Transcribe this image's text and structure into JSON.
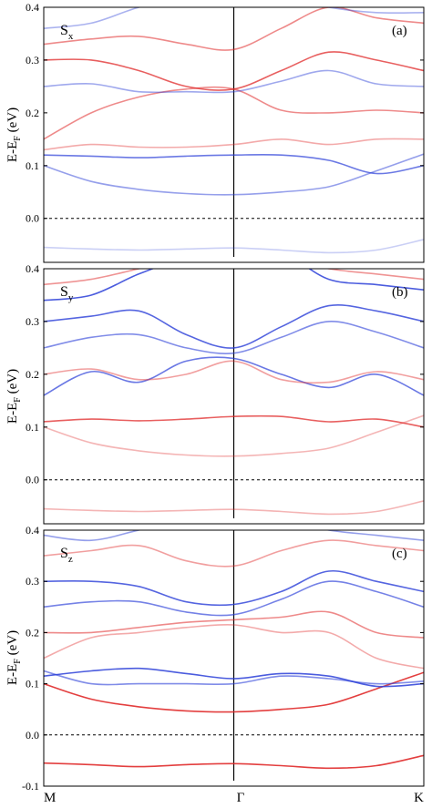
{
  "figure": {
    "ylabel_main": "E-E",
    "ylabel_sub": "F",
    "ylabel_unit": " (eV)",
    "x_ticks": [
      "M",
      "Γ",
      "K"
    ]
  },
  "colors": {
    "up": "#2b3fd8",
    "down": "#e02a2a",
    "axis": "#000000"
  },
  "chart_data": [
    {
      "type": "line",
      "panel_label": "(a)",
      "spin_main": "S",
      "spin_sub": "x",
      "xlabel": "",
      "ylabel": "E-EF (eV)",
      "ylim": [
        -0.0833,
        0.4
      ],
      "y_ticks": [
        "0.0",
        "0.1",
        "0.2",
        "0.3",
        "0.4"
      ],
      "reference_line": 0.0,
      "x": [
        0,
        0.25,
        0.5,
        0.75,
        1.0,
        1.25,
        1.5,
        1.75,
        2.0
      ],
      "series": [
        {
          "values": [
            -0.055,
            -0.058,
            -0.06,
            -0.058,
            -0.056,
            -0.06,
            -0.065,
            -0.06,
            -0.04
          ],
          "color": "#2b3fd8",
          "opacity": 0.25
        },
        {
          "values": [
            0.1,
            0.07,
            0.055,
            0.047,
            0.045,
            0.05,
            0.06,
            0.09,
            0.122
          ],
          "color": "#2b3fd8",
          "opacity": 0.5
        },
        {
          "values": [
            0.12,
            0.118,
            0.115,
            0.118,
            0.12,
            0.12,
            0.11,
            0.085,
            0.1
          ],
          "color": "#2b3fd8",
          "opacity": 0.7
        },
        {
          "values": [
            0.13,
            0.14,
            0.135,
            0.135,
            0.14,
            0.15,
            0.14,
            0.15,
            0.15
          ],
          "color": "#e02a2a",
          "opacity": 0.4
        },
        {
          "values": [
            0.15,
            0.2,
            0.23,
            0.245,
            0.245,
            0.205,
            0.2,
            0.205,
            0.2
          ],
          "color": "#e02a2a",
          "opacity": 0.55
        },
        {
          "values": [
            0.25,
            0.255,
            0.24,
            0.24,
            0.24,
            0.26,
            0.28,
            0.255,
            0.25
          ],
          "color": "#2b3fd8",
          "opacity": 0.45
        },
        {
          "values": [
            0.3,
            0.3,
            0.28,
            0.25,
            0.245,
            0.28,
            0.315,
            0.3,
            0.28
          ],
          "color": "#e02a2a",
          "opacity": 0.75
        },
        {
          "values": [
            0.33,
            0.34,
            0.345,
            0.33,
            0.32,
            0.36,
            0.4,
            0.38,
            0.37
          ],
          "color": "#e02a2a",
          "opacity": 0.55
        },
        {
          "values": [
            0.36,
            0.37,
            0.4,
            0.42,
            0.43,
            0.42,
            0.4,
            0.39,
            0.39
          ],
          "color": "#2b3fd8",
          "opacity": 0.4
        }
      ]
    },
    {
      "type": "line",
      "panel_label": "(b)",
      "spin_main": "S",
      "spin_sub": "y",
      "xlabel": "",
      "ylabel": "E-EF (eV)",
      "ylim": [
        -0.0833,
        0.4
      ],
      "y_ticks": [
        "0.0",
        "0.1",
        "0.2",
        "0.3",
        "0.4"
      ],
      "reference_line": 0.0,
      "x": [
        0,
        0.25,
        0.5,
        0.75,
        1.0,
        1.25,
        1.5,
        1.75,
        2.0
      ],
      "series": [
        {
          "values": [
            -0.055,
            -0.058,
            -0.06,
            -0.058,
            -0.056,
            -0.06,
            -0.065,
            -0.06,
            -0.04
          ],
          "color": "#e02a2a",
          "opacity": 0.35
        },
        {
          "values": [
            0.1,
            0.07,
            0.055,
            0.047,
            0.045,
            0.05,
            0.06,
            0.09,
            0.122
          ],
          "color": "#e02a2a",
          "opacity": 0.35
        },
        {
          "values": [
            0.11,
            0.115,
            0.112,
            0.115,
            0.12,
            0.12,
            0.11,
            0.115,
            0.1
          ],
          "color": "#e02a2a",
          "opacity": 0.75
        },
        {
          "values": [
            0.16,
            0.205,
            0.185,
            0.225,
            0.23,
            0.2,
            0.175,
            0.2,
            0.16
          ],
          "color": "#2b3fd8",
          "opacity": 0.7
        },
        {
          "values": [
            0.2,
            0.21,
            0.19,
            0.2,
            0.225,
            0.19,
            0.185,
            0.205,
            0.19
          ],
          "color": "#e02a2a",
          "opacity": 0.45
        },
        {
          "values": [
            0.25,
            0.27,
            0.275,
            0.25,
            0.24,
            0.27,
            0.3,
            0.28,
            0.25
          ],
          "color": "#2b3fd8",
          "opacity": 0.6
        },
        {
          "values": [
            0.3,
            0.31,
            0.32,
            0.275,
            0.25,
            0.29,
            0.33,
            0.32,
            0.3
          ],
          "color": "#2b3fd8",
          "opacity": 0.8
        },
        {
          "values": [
            0.34,
            0.35,
            0.39,
            0.42,
            0.43,
            0.43,
            0.38,
            0.37,
            0.36
          ],
          "color": "#2b3fd8",
          "opacity": 0.85
        },
        {
          "values": [
            0.37,
            0.38,
            0.4,
            0.42,
            0.44,
            0.42,
            0.4,
            0.39,
            0.38
          ],
          "color": "#e02a2a",
          "opacity": 0.5
        }
      ]
    },
    {
      "type": "line",
      "panel_label": "(c)",
      "spin_main": "S",
      "spin_sub": "z",
      "xlabel": "",
      "ylabel": "E-EF (eV)",
      "ylim": [
        -0.1,
        0.4
      ],
      "y_ticks": [
        "-0.1",
        "0.0",
        "0.1",
        "0.2",
        "0.3",
        "0.4"
      ],
      "reference_line": 0.0,
      "x": [
        0,
        0.25,
        0.5,
        0.75,
        1.0,
        1.25,
        1.5,
        1.75,
        2.0
      ],
      "series": [
        {
          "values": [
            -0.055,
            -0.058,
            -0.062,
            -0.058,
            -0.056,
            -0.06,
            -0.065,
            -0.06,
            -0.04
          ],
          "color": "#e02a2a",
          "opacity": 0.9
        },
        {
          "values": [
            0.1,
            0.07,
            0.055,
            0.047,
            0.045,
            0.05,
            0.06,
            0.09,
            0.122
          ],
          "color": "#e02a2a",
          "opacity": 0.9
        },
        {
          "values": [
            0.115,
            0.125,
            0.13,
            0.12,
            0.11,
            0.12,
            0.115,
            0.095,
            0.1
          ],
          "color": "#2b3fd8",
          "opacity": 0.85
        },
        {
          "values": [
            0.125,
            0.1,
            0.1,
            0.1,
            0.1,
            0.115,
            0.11,
            0.1,
            0.105
          ],
          "color": "#2b3fd8",
          "opacity": 0.6
        },
        {
          "values": [
            0.15,
            0.19,
            0.2,
            0.21,
            0.215,
            0.2,
            0.2,
            0.15,
            0.13
          ],
          "color": "#e02a2a",
          "opacity": 0.4
        },
        {
          "values": [
            0.2,
            0.2,
            0.21,
            0.22,
            0.225,
            0.23,
            0.24,
            0.2,
            0.19
          ],
          "color": "#e02a2a",
          "opacity": 0.55
        },
        {
          "values": [
            0.25,
            0.26,
            0.26,
            0.24,
            0.235,
            0.265,
            0.3,
            0.28,
            0.25
          ],
          "color": "#2b3fd8",
          "opacity": 0.65
        },
        {
          "values": [
            0.3,
            0.3,
            0.29,
            0.26,
            0.255,
            0.28,
            0.32,
            0.3,
            0.28
          ],
          "color": "#2b3fd8",
          "opacity": 0.8
        },
        {
          "values": [
            0.35,
            0.36,
            0.37,
            0.34,
            0.33,
            0.36,
            0.38,
            0.37,
            0.36
          ],
          "color": "#e02a2a",
          "opacity": 0.45
        },
        {
          "values": [
            0.39,
            0.38,
            0.4,
            0.42,
            0.43,
            0.42,
            0.4,
            0.39,
            0.38
          ],
          "color": "#2b3fd8",
          "opacity": 0.5
        }
      ]
    }
  ]
}
